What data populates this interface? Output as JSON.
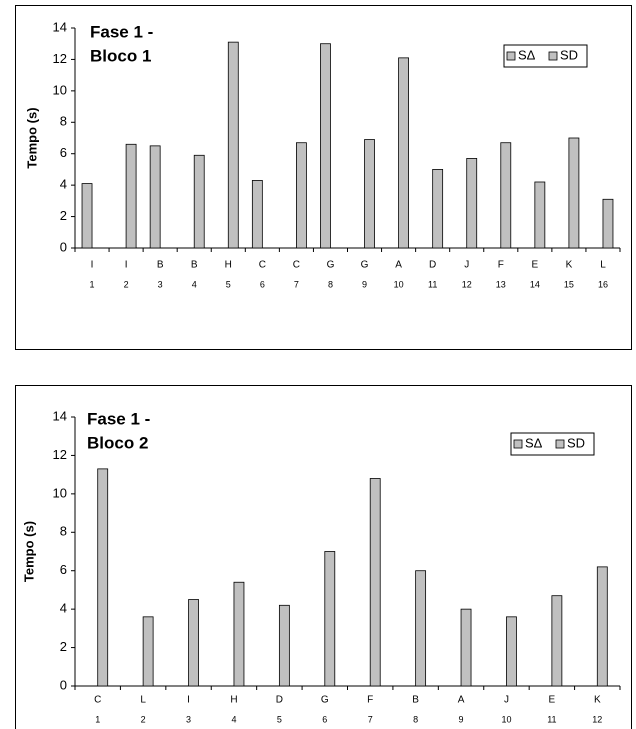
{
  "chart_data": [
    {
      "type": "bar",
      "title": [
        "Fase 1 -",
        "Bloco 1"
      ],
      "y_label": "Tempo (s)",
      "categories": [
        "I",
        "I",
        "B",
        "B",
        "H",
        "C",
        "C",
        "G",
        "G",
        "A",
        "D",
        "J",
        "F",
        "E",
        "K",
        "L"
      ],
      "category_numbers": [
        1,
        2,
        3,
        4,
        5,
        6,
        7,
        8,
        9,
        10,
        11,
        12,
        13,
        14,
        15,
        16
      ],
      "series": [
        {
          "name": "SΔ",
          "color": "#c0c0c0",
          "values": [
            4.1,
            null,
            6.5,
            null,
            null,
            4.3,
            null,
            13.0,
            null,
            null,
            null,
            null,
            null,
            null,
            null,
            null
          ]
        },
        {
          "name": "SD",
          "color": "#c0c0c0",
          "values": [
            null,
            6.6,
            null,
            5.9,
            13.1,
            null,
            6.7,
            null,
            6.9,
            12.1,
            5.0,
            5.7,
            6.7,
            4.2,
            7.0,
            3.1
          ]
        }
      ],
      "ylim": [
        0,
        14
      ],
      "yticks": [
        0,
        2,
        4,
        6,
        8,
        10,
        12,
        14
      ],
      "grid": false,
      "legend": "upper right"
    },
    {
      "type": "bar",
      "title": [
        "Fase 1 -",
        "Bloco 2"
      ],
      "y_label": "Tempo (s)",
      "categories": [
        "C",
        "L",
        "I",
        "H",
        "D",
        "G",
        "F",
        "B",
        "A",
        "J",
        "E",
        "K"
      ],
      "category_numbers": [
        1,
        2,
        3,
        4,
        5,
        6,
        7,
        8,
        9,
        10,
        11,
        12
      ],
      "series": [
        {
          "name": "SΔ",
          "color": "#c0c0c0",
          "values": [
            null,
            null,
            null,
            null,
            null,
            null,
            null,
            null,
            null,
            null,
            null,
            null
          ]
        },
        {
          "name": "SD",
          "color": "#c0c0c0",
          "values": [
            11.3,
            3.6,
            4.5,
            5.4,
            4.2,
            7.0,
            10.8,
            6.0,
            4.0,
            3.6,
            4.7,
            6.2
          ]
        }
      ],
      "ylim": [
        0,
        14
      ],
      "yticks": [
        0,
        2,
        4,
        6,
        8,
        10,
        12,
        14
      ],
      "grid": false,
      "legend": "upper right"
    }
  ]
}
